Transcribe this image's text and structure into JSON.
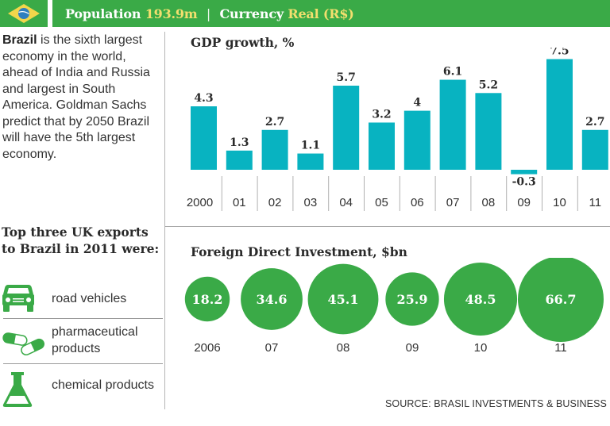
{
  "header": {
    "flag_icon": "brazil-flag-icon",
    "population_label": "Population",
    "population_value": "193.9m",
    "separator": "|",
    "currency_label": "Currency",
    "currency_value": "Real (R$)"
  },
  "intro": {
    "bold_lead": "Brazil",
    "text": " is the sixth largest economy in the world, ahead of India and Russia and largest in South America. Goldman Sachs predict that by 2050 Brazil will have the 5th largest economy."
  },
  "exports": {
    "title": "Top three UK exports to Brazil in 2011 were:",
    "items": [
      {
        "icon": "car-icon",
        "label": "road vehicles"
      },
      {
        "icon": "pill-capsules-icon",
        "label": "pharmaceutical products"
      },
      {
        "icon": "flask-icon",
        "label": "chemical products"
      }
    ]
  },
  "colors": {
    "header_green": "#3aaa47",
    "header_highlight": "#f3df6e",
    "bar_teal": "#08b3c1",
    "bubble_green": "#3aaa47"
  },
  "source": "SOURCE: BRASIL INVESTMENTS & BUSINESS",
  "chart_data": [
    {
      "type": "bar",
      "title": "GDP growth, %",
      "xlabel": "",
      "ylabel": "",
      "categories": [
        "2000",
        "01",
        "02",
        "03",
        "04",
        "05",
        "06",
        "07",
        "08",
        "09",
        "10",
        "11"
      ],
      "values": [
        4.3,
        1.3,
        2.7,
        1.1,
        5.7,
        3.2,
        4,
        6.1,
        5.2,
        -0.3,
        7.5,
        2.7
      ],
      "value_labels": [
        "4.3",
        "1.3",
        "2.7",
        "1.1",
        "5.7",
        "3.2",
        "4",
        "6.1",
        "5.2",
        "-0.3",
        "7.5",
        "2.7"
      ],
      "ylim": [
        -0.5,
        8
      ],
      "grid": false,
      "legend": "none"
    },
    {
      "type": "scatter",
      "subtype": "bubble",
      "title": "Foreign Direct Investment, $bn",
      "categories": [
        "2006",
        "07",
        "08",
        "09",
        "10",
        "11"
      ],
      "values": [
        18.2,
        34.6,
        45.1,
        25.9,
        48.5,
        66.7
      ],
      "value_labels": [
        "18.2",
        "34.6",
        "45.1",
        "25.9",
        "48.5",
        "66.7"
      ],
      "grid": false,
      "legend": "none"
    }
  ]
}
